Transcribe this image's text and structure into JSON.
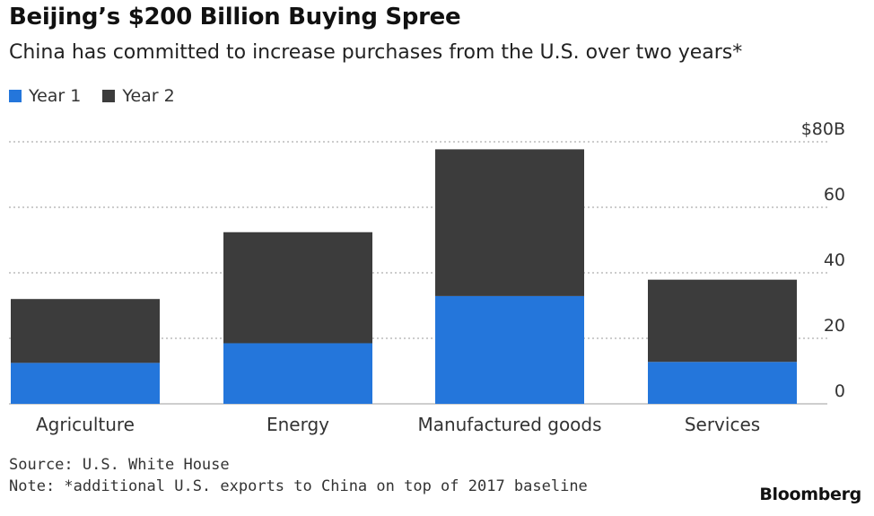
{
  "header": {
    "title": "Beijing’s $200 Billion Buying Spree",
    "subtitle": "China has committed to increase purchases from the U.S. over two years*"
  },
  "legend": {
    "items": [
      {
        "label": "Year 1",
        "color": "#2476db"
      },
      {
        "label": "Year 2",
        "color": "#3c3c3c"
      }
    ]
  },
  "chart_data": {
    "type": "bar",
    "stacked": true,
    "categories": [
      "Agriculture",
      "Energy",
      "Manufactured goods",
      "Services"
    ],
    "series": [
      {
        "name": "Year 1",
        "values": [
          12.5,
          18.5,
          32.9,
          12.8
        ],
        "color": "#2476db"
      },
      {
        "name": "Year 2",
        "values": [
          19.5,
          33.9,
          44.8,
          25.1
        ],
        "color": "#3c3c3c"
      }
    ],
    "y_ticks": [
      {
        "value": 0,
        "label": "0"
      },
      {
        "value": 20,
        "label": "20"
      },
      {
        "value": 40,
        "label": "40"
      },
      {
        "value": 60,
        "label": "60"
      },
      {
        "value": 80,
        "label": "$80B"
      }
    ],
    "ylim": [
      0,
      80
    ],
    "axis_side": "right",
    "grid": true
  },
  "footer": {
    "source": "Source: U.S. White House",
    "note": "Note: *additional U.S. exports to China on top of 2017 baseline",
    "brand": "Bloomberg"
  }
}
